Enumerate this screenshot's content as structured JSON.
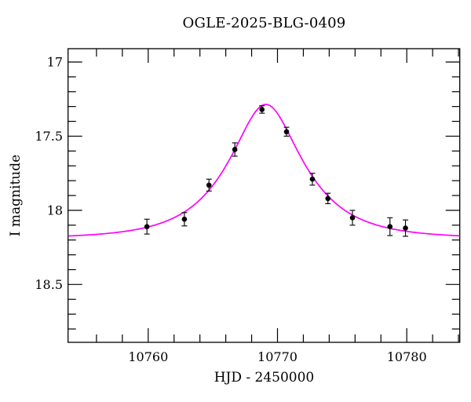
{
  "chart_data": {
    "type": "scatter",
    "title": "OGLE-2025-BLG-0409",
    "xlabel": "HJD - 2450000",
    "ylabel": "I magnitude",
    "xlim": [
      10753.8,
      10784.1
    ],
    "ylim": [
      16.91,
      18.89
    ],
    "y_axis_inverted": true,
    "grid": false,
    "legend_position": "none",
    "x_major_ticks": [
      10760,
      10770,
      10780
    ],
    "x_major_tick_labels": [
      "10760",
      "10770",
      "10780"
    ],
    "x_minor_tick_step": 2,
    "y_major_ticks": [
      17,
      17.5,
      18,
      18.5
    ],
    "y_major_tick_labels": [
      "17",
      "17.5",
      "18",
      "18.5"
    ],
    "y_minor_tick_step": 0.1,
    "frame_color": "#000000",
    "series": [
      {
        "name": "data",
        "type": "scatter",
        "marker": "filled-circle",
        "color": "#000000",
        "points": [
          {
            "x": 10759.9,
            "y": 18.11,
            "err": 0.05
          },
          {
            "x": 10762.8,
            "y": 18.06,
            "err": 0.045
          },
          {
            "x": 10764.7,
            "y": 17.83,
            "err": 0.04
          },
          {
            "x": 10766.7,
            "y": 17.59,
            "err": 0.045
          },
          {
            "x": 10768.8,
            "y": 17.32,
            "err": 0.025
          },
          {
            "x": 10770.7,
            "y": 17.47,
            "err": 0.03
          },
          {
            "x": 10772.7,
            "y": 17.79,
            "err": 0.04
          },
          {
            "x": 10773.9,
            "y": 17.92,
            "err": 0.035
          },
          {
            "x": 10775.8,
            "y": 18.05,
            "err": 0.05
          },
          {
            "x": 10778.7,
            "y": 18.11,
            "err": 0.06
          },
          {
            "x": 10779.9,
            "y": 18.12,
            "err": 0.055
          }
        ]
      },
      {
        "name": "model",
        "type": "line",
        "color": "#ff00ff",
        "model": {
          "kind": "paczynski-microlensing",
          "t0": 10769.1,
          "tE": 5.06,
          "u0": 0.47,
          "baseline_mag": 18.19,
          "peak_mag": 17.29
        }
      }
    ]
  }
}
